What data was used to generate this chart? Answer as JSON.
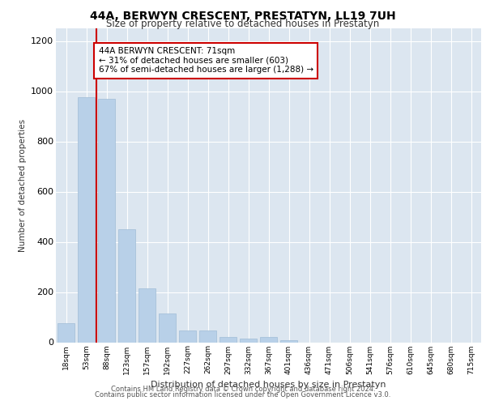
{
  "title": "44A, BERWYN CRESCENT, PRESTATYN, LL19 7UH",
  "subtitle": "Size of property relative to detached houses in Prestatyn",
  "xlabel": "Distribution of detached houses by size in Prestatyn",
  "ylabel": "Number of detached properties",
  "categories": [
    "18sqm",
    "53sqm",
    "88sqm",
    "123sqm",
    "157sqm",
    "192sqm",
    "227sqm",
    "262sqm",
    "297sqm",
    "332sqm",
    "367sqm",
    "401sqm",
    "436sqm",
    "471sqm",
    "506sqm",
    "541sqm",
    "576sqm",
    "610sqm",
    "645sqm",
    "680sqm",
    "715sqm"
  ],
  "values": [
    75,
    975,
    970,
    450,
    215,
    115,
    47,
    47,
    20,
    15,
    20,
    8,
    0,
    0,
    0,
    0,
    0,
    0,
    0,
    0,
    0
  ],
  "bar_color": "#b8d0e8",
  "bar_edge_color": "#a0bcd6",
  "marker_label": "44A BERWYN CRESCENT: 71sqm",
  "annotation_line1": "← 31% of detached houses are smaller (603)",
  "annotation_line2": "67% of semi-detached houses are larger (1,288) →",
  "marker_color": "#cc0000",
  "annotation_box_color": "#ffffff",
  "annotation_box_edge_color": "#cc0000",
  "plot_background_color": "#dce6f0",
  "ylim": [
    0,
    1250
  ],
  "yticks": [
    0,
    200,
    400,
    600,
    800,
    1000,
    1200
  ],
  "footer1": "Contains HM Land Registry data © Crown copyright and database right 2024.",
  "footer2": "Contains public sector information licensed under the Open Government Licence v3.0."
}
